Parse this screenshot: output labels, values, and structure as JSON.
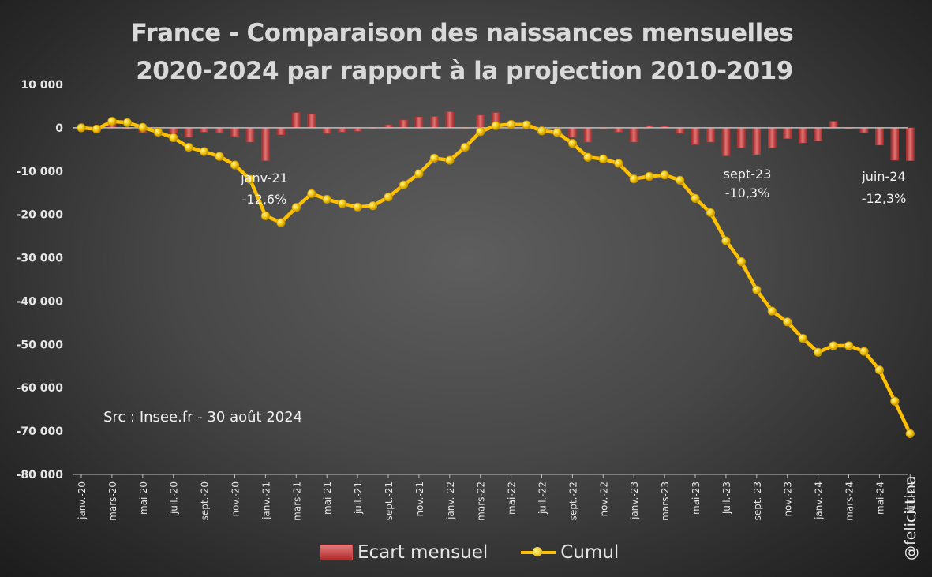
{
  "chart_data": {
    "type": "bar+line",
    "title_line1": "France - Comparaison des naissances mensuelles",
    "title_line2": "2020-2024 par rapport à la projection 2010-2019",
    "ylim": [
      -80000,
      10000
    ],
    "ytick_values": [
      10000,
      0,
      -10000,
      -20000,
      -30000,
      -40000,
      -50000,
      -60000,
      -70000,
      -80000
    ],
    "ytick_labels": [
      "10 000",
      "0",
      "-10 000",
      "-20 000",
      "-30 000",
      "-40 000",
      "-50 000",
      "-60 000",
      "-70 000",
      "-80 000"
    ],
    "months": [
      "janv.-20",
      "févr.-20",
      "mars-20",
      "avr.-20",
      "mai-20",
      "juin-20",
      "juil.-20",
      "août-20",
      "sept.-20",
      "oct.-20",
      "nov.-20",
      "déc.-20",
      "janv.-21",
      "févr.-21",
      "mars-21",
      "avr.-21",
      "mai-21",
      "juin-21",
      "juil.-21",
      "août-21",
      "sept.-21",
      "oct.-21",
      "nov.-21",
      "déc.-21",
      "janv.-22",
      "févr.-22",
      "mars-22",
      "avr.-22",
      "mai-22",
      "juin-22",
      "juil.-22",
      "août-22",
      "sept.-22",
      "oct.-22",
      "nov.-22",
      "déc.-22",
      "janv.-23",
      "févr.-23",
      "mars-23",
      "avr.-23",
      "mai-23",
      "juin-23",
      "juil.-23",
      "août-23",
      "sept.-23",
      "oct.-23",
      "nov.-23",
      "déc.-23",
      "janv.-24",
      "févr.-24",
      "mars-24",
      "avr.-24",
      "mai-24",
      "juin-24",
      "juil.-24"
    ],
    "xtick_labels": [
      "janv.-20",
      "mars-20",
      "mai-20",
      "juil.-20",
      "sept.-20",
      "nov.-20",
      "janv.-21",
      "mars-21",
      "mai-21",
      "juil.-21",
      "sept.-21",
      "nov.-21",
      "janv.-22",
      "mars-22",
      "mai-22",
      "juil.-22",
      "sept.-22",
      "nov.-22",
      "janv.-23",
      "mars-23",
      "mai-23",
      "juil.-23",
      "sept.-23",
      "nov.-23",
      "janv.-24",
      "mars-24",
      "mai-24",
      "juil.-24"
    ],
    "series": [
      {
        "name": "Ecart mensuel",
        "kind": "bar",
        "color": "#c0393b",
        "values": [
          0,
          -300,
          1800,
          -300,
          -1100,
          -1100,
          -1300,
          -2200,
          -1000,
          -1100,
          -2000,
          -3300,
          -7600,
          -1600,
          3500,
          3200,
          -1300,
          -1000,
          -800,
          -200,
          700,
          1800,
          2500,
          2600,
          3700,
          -200,
          2900,
          3500,
          1500,
          100,
          -1400,
          -100,
          -2200,
          -3300,
          -200,
          -1000,
          -3300,
          500,
          300,
          -1300,
          -3900,
          -3300,
          -6500,
          -4700,
          -6200,
          -4700,
          -2500,
          -3500,
          -3000,
          1500,
          -100,
          -1100,
          -4000,
          -7500,
          -7600
        ]
      },
      {
        "name": "Cumul",
        "kind": "line",
        "color": "#ffc000",
        "values": [
          0,
          -300,
          1500,
          1200,
          100,
          -1000,
          -2300,
          -4500,
          -5500,
          -6600,
          -8600,
          -11900,
          -20300,
          -21900,
          -18400,
          -15200,
          -16500,
          -17500,
          -18300,
          -18000,
          -16000,
          -13200,
          -10600,
          -7000,
          -7500,
          -4500,
          -900,
          500,
          800,
          700,
          -700,
          -1100,
          -3600,
          -6800,
          -7200,
          -8200,
          -11800,
          -11200,
          -10900,
          -12100,
          -16300,
          -19600,
          -26100,
          -30900,
          -37400,
          -42300,
          -44800,
          -48600,
          -51800,
          -50300,
          -50300,
          -51600,
          -55900,
          -63100,
          -70600
        ]
      }
    ],
    "annotations": [
      {
        "line1": "janv-21",
        "line2": "-12,6%",
        "month_index": 12
      },
      {
        "line1": "sept-23",
        "line2": "-10,3%",
        "month_index": 44
      },
      {
        "line1": "juin-24",
        "line2": "-12,3%",
        "month_index": 53
      }
    ],
    "source_note": "Src : Insee.fr - 30 août 2024",
    "legend": [
      {
        "label": "Ecart mensuel",
        "kind": "bar"
      },
      {
        "label": "Cumul",
        "kind": "line"
      }
    ],
    "credit": "@felicittina"
  }
}
